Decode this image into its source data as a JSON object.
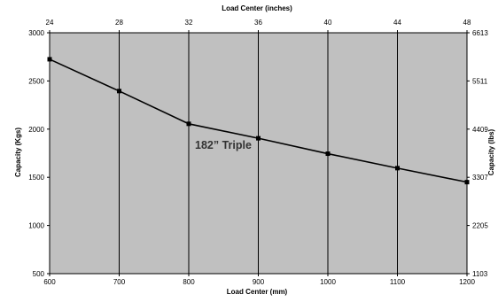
{
  "chart_data": {
    "type": "line",
    "title": "",
    "xlabel": "Load Center (mm)",
    "ylabel": "Capacity (Kgs)",
    "x2label": "Load Center (inches)",
    "y2label": "Capacity (lbs)",
    "xlim": [
      600,
      1200
    ],
    "ylim": [
      500,
      3000
    ],
    "x_ticks": [
      600,
      700,
      800,
      900,
      1000,
      1100,
      1200
    ],
    "y_ticks": [
      500,
      1000,
      1500,
      2000,
      2500,
      3000
    ],
    "x2_ticks": [
      "24",
      "28",
      "32",
      "36",
      "40",
      "44",
      "48"
    ],
    "y2_ticks": [
      "1103",
      "2205",
      "3307",
      "4409",
      "5511",
      "6613"
    ],
    "grid": "vertical",
    "plot_background": "#c0c0c0",
    "line_color": "#000000",
    "annotation": "182” Triple",
    "series": [
      {
        "x": [
          600,
          700,
          800,
          900,
          1000,
          1100,
          1200
        ],
        "y": [
          2725,
          2395,
          2055,
          1905,
          1745,
          1595,
          1450
        ]
      }
    ]
  }
}
